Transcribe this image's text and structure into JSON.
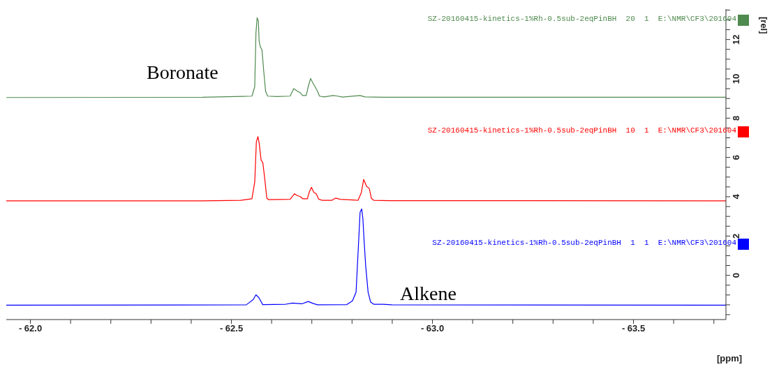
{
  "chart_data": {
    "type": "line",
    "xlabel": "[ppm]",
    "ylabel": "[rel]",
    "xlim": [
      -61.94,
      -63.73
    ],
    "ylim": [
      -2.25,
      13.55
    ],
    "xticks": [
      {
        "value": -62.0,
        "label": "- 62.0"
      },
      {
        "value": -62.1,
        "label": null
      },
      {
        "value": -62.2,
        "label": null
      },
      {
        "value": -62.3,
        "label": null
      },
      {
        "value": -62.4,
        "label": null
      },
      {
        "value": -62.5,
        "label": "- 62.5"
      },
      {
        "value": -62.6,
        "label": null
      },
      {
        "value": -62.7,
        "label": null
      },
      {
        "value": -62.8,
        "label": null
      },
      {
        "value": -62.9,
        "label": null
      },
      {
        "value": -63.0,
        "label": "- 63.0"
      },
      {
        "value": -63.1,
        "label": null
      },
      {
        "value": -63.2,
        "label": null
      },
      {
        "value": -63.3,
        "label": null
      },
      {
        "value": -63.4,
        "label": null
      },
      {
        "value": -63.5,
        "label": "- 63.5"
      },
      {
        "value": -63.6,
        "label": null
      },
      {
        "value": -63.7,
        "label": null
      }
    ],
    "yticks": [
      {
        "value": -2,
        "label": null
      },
      {
        "value": -1.5,
        "label": null
      },
      {
        "value": -1,
        "label": null
      },
      {
        "value": -0.5,
        "label": null
      },
      0,
      {
        "value": 0.5,
        "label": null
      },
      {
        "value": 1,
        "label": null
      },
      {
        "value": 1.5,
        "label": null
      },
      2,
      {
        "value": 2.5,
        "label": null
      },
      {
        "value": 3,
        "label": null
      },
      {
        "value": 3.5,
        "label": null
      },
      4,
      {
        "value": 4.5,
        "label": null
      },
      {
        "value": 5,
        "label": null
      },
      {
        "value": 5.5,
        "label": null
      },
      6,
      {
        "value": 6.5,
        "label": null
      },
      {
        "value": 7,
        "label": null
      },
      {
        "value": 7.5,
        "label": null
      },
      8,
      {
        "value": 8.5,
        "label": null
      },
      {
        "value": 9,
        "label": null
      },
      {
        "value": 9.5,
        "label": null
      },
      10,
      {
        "value": 10.5,
        "label": null
      },
      {
        "value": 11,
        "label": null
      },
      {
        "value": 11.5,
        "label": null
      },
      12,
      {
        "value": 12.5,
        "label": null
      },
      {
        "value": 13,
        "label": null
      },
      {
        "value": 13.5,
        "label": null
      }
    ],
    "annotations": [
      "Boronate",
      "Alkene"
    ],
    "legend": "top right",
    "series": [
      {
        "name": "SZ-20160415-kinetics-1%Rh-0.5sub-2eqPinBH  20  1  E:\\NMR\\CF3\\201604",
        "color": "#4f8a4f",
        "x": [
          -61.94,
          -62.428,
          -62.529,
          -62.551,
          -62.558,
          -62.561,
          -62.564,
          -62.567,
          -62.569,
          -62.572,
          -62.576,
          -62.58,
          -62.585,
          -62.59,
          -62.613,
          -62.646,
          -62.655,
          -62.663,
          -62.672,
          -62.677,
          -62.686,
          -62.691,
          -62.697,
          -62.703,
          -62.708,
          -62.714,
          -62.719,
          -62.731,
          -62.753,
          -62.764,
          -62.776,
          -62.82,
          -62.832,
          -62.877,
          -63.73
        ],
        "values": [
          9.05,
          9.06,
          9.11,
          9.12,
          9.6,
          12.34,
          13.11,
          12.95,
          11.9,
          11.63,
          11.47,
          10.48,
          9.37,
          9.12,
          9.1,
          9.12,
          9.5,
          9.39,
          9.28,
          9.15,
          9.15,
          9.6,
          10.02,
          9.77,
          9.6,
          9.37,
          9.12,
          9.08,
          9.15,
          9.12,
          9.07,
          9.15,
          9.08,
          9.06,
          9.06
        ]
      },
      {
        "name": "SZ-20160415-kinetics-1%Rh-0.5sub-2eqPinBH  10  1  E:\\NMR\\CF3\\201604",
        "color": "#ff0000",
        "x": [
          -61.94,
          -62.428,
          -62.523,
          -62.551,
          -62.558,
          -62.562,
          -62.566,
          -62.569,
          -62.574,
          -62.578,
          -62.582,
          -62.588,
          -62.593,
          -62.646,
          -62.657,
          -62.663,
          -62.672,
          -62.677,
          -62.689,
          -62.694,
          -62.699,
          -62.705,
          -62.711,
          -62.717,
          -62.725,
          -62.75,
          -62.759,
          -62.77,
          -62.815,
          -62.823,
          -62.829,
          -62.836,
          -62.843,
          -62.848,
          -62.854,
          -62.893,
          -63.73
        ],
        "values": [
          3.79,
          3.79,
          3.82,
          3.9,
          4.75,
          6.79,
          7.06,
          6.73,
          5.85,
          5.74,
          5.08,
          3.93,
          3.85,
          3.87,
          4.15,
          4.07,
          4.0,
          3.9,
          3.9,
          4.26,
          4.48,
          4.22,
          4.15,
          3.88,
          3.82,
          3.82,
          3.93,
          3.87,
          3.82,
          4.2,
          4.88,
          4.53,
          4.42,
          3.92,
          3.82,
          3.8,
          3.79
        ]
      },
      {
        "name": "SZ-20160415-kinetics-1%Rh-0.5sub-2eqPinBH  1  1  E:\\NMR\\CF3\\201604",
        "color": "#0000ff",
        "x": [
          -61.94,
          -62.537,
          -62.554,
          -62.561,
          -62.568,
          -62.578,
          -62.635,
          -62.652,
          -62.675,
          -62.691,
          -62.703,
          -62.714,
          -62.787,
          -62.801,
          -62.81,
          -62.816,
          -62.82,
          -62.824,
          -62.827,
          -62.83,
          -62.834,
          -62.84,
          -62.846,
          -62.854,
          -62.877,
          -62.899,
          -63.73
        ],
        "values": [
          -1.52,
          -1.5,
          -1.24,
          -0.99,
          -1.13,
          -1.49,
          -1.47,
          -1.41,
          -1.45,
          -1.33,
          -1.43,
          -1.5,
          -1.49,
          -1.3,
          -0.86,
          1.56,
          3.21,
          3.38,
          2.88,
          1.78,
          0.46,
          -0.86,
          -1.35,
          -1.47,
          -1.47,
          -1.5,
          -1.52
        ]
      }
    ]
  }
}
